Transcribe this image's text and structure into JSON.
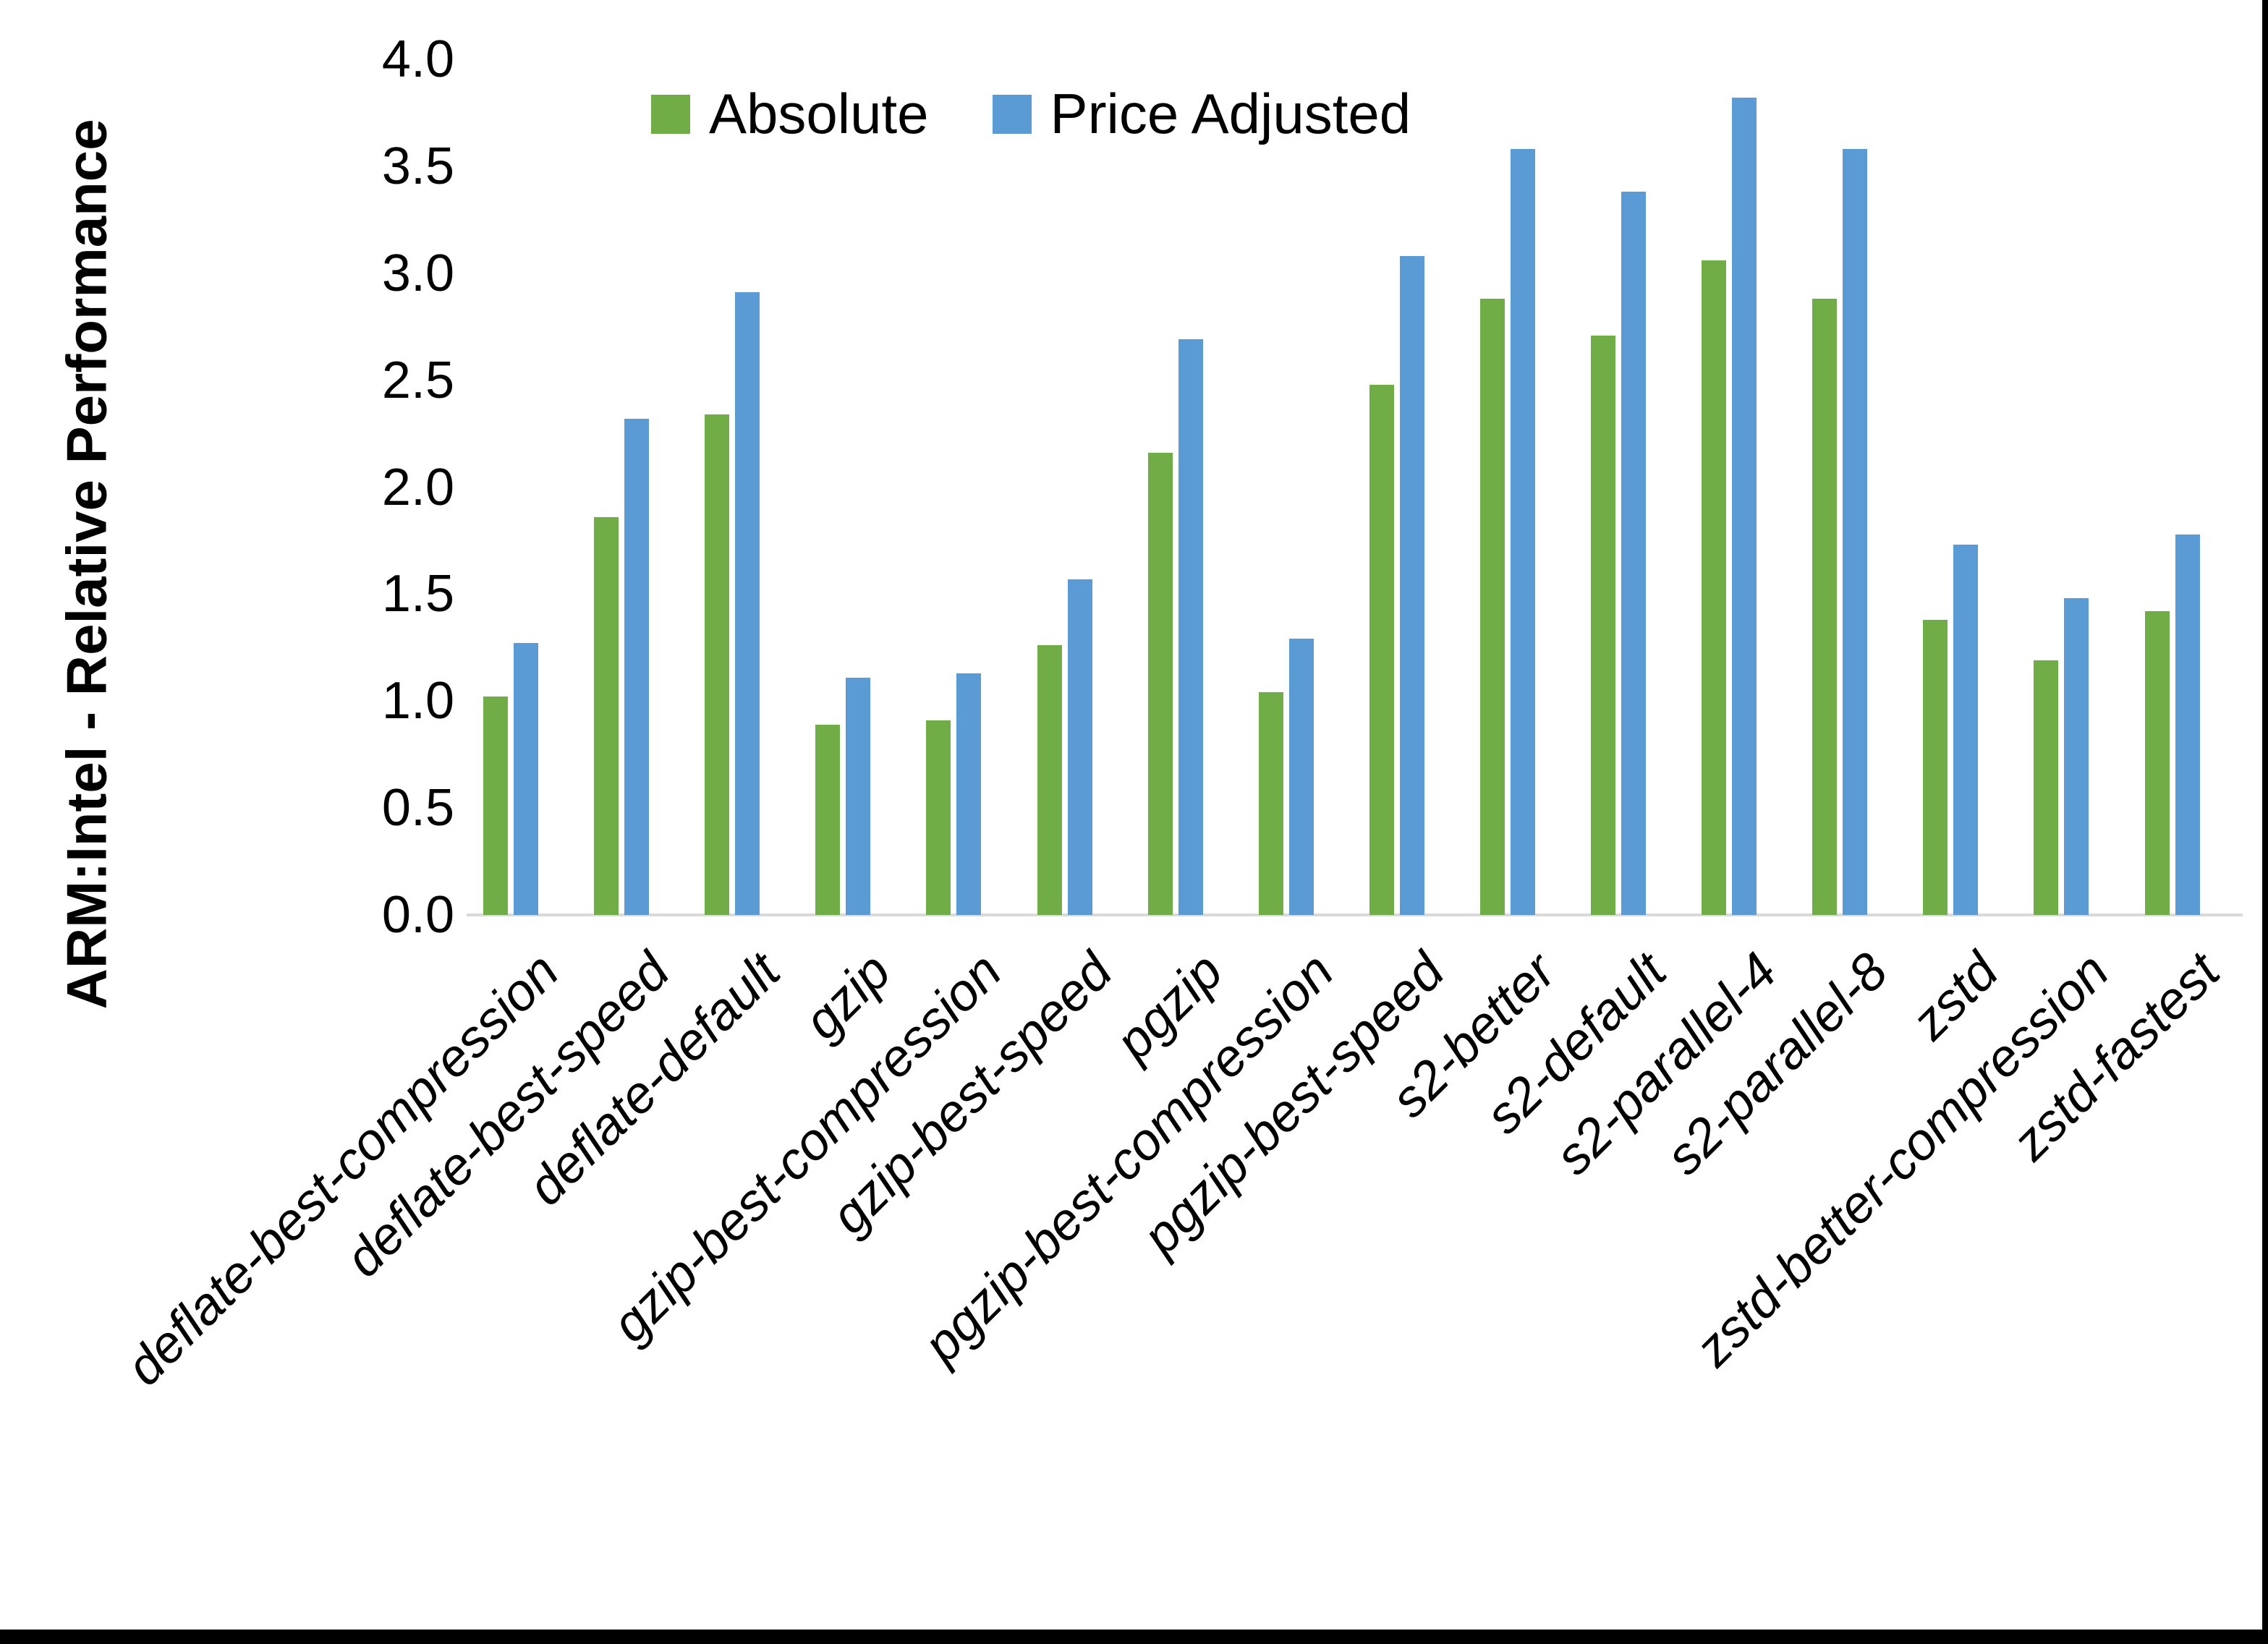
{
  "chart_data": {
    "type": "bar",
    "title": "",
    "xlabel": "",
    "ylabel": "ARM:Intel - Relative Performance",
    "ylim": [
      0.0,
      4.0
    ],
    "ytick_labels": [
      "0.0",
      "0.5",
      "1.0",
      "1.5",
      "2.0",
      "2.5",
      "3.0",
      "3.5",
      "4.0"
    ],
    "grid": false,
    "legend_position": "top-center",
    "categories": [
      "deflate-best-compression",
      "deflate-best-speed",
      "deflate-default",
      "gzip",
      "gzip-best-compression",
      "gzip-best-speed",
      "pgzip",
      "pgzip-best-compression",
      "pgzip-best-speed",
      "s2-better",
      "s2-default",
      "s2-parallel-4",
      "s2-parallel-8",
      "zstd",
      "zstd-better-compression",
      "zstd-fastest"
    ],
    "series": [
      {
        "name": "Absolute",
        "color": "#70AD47",
        "values": [
          1.02,
          1.86,
          2.34,
          0.89,
          0.91,
          1.26,
          2.16,
          1.04,
          2.48,
          2.88,
          2.71,
          3.06,
          2.88,
          1.38,
          1.19,
          1.42
        ]
      },
      {
        "name": "Price Adjusted",
        "color": "#5B9BD5",
        "values": [
          1.27,
          2.32,
          2.91,
          1.11,
          1.13,
          1.57,
          2.69,
          1.29,
          3.08,
          3.58,
          3.38,
          3.82,
          3.58,
          1.73,
          1.48,
          1.78
        ]
      }
    ],
    "axis_line_color": "#D9D9D9",
    "text_color": "#000000"
  },
  "frame": {
    "bottom_bar_color": "#000000",
    "right_bar_color": "#000000"
  }
}
